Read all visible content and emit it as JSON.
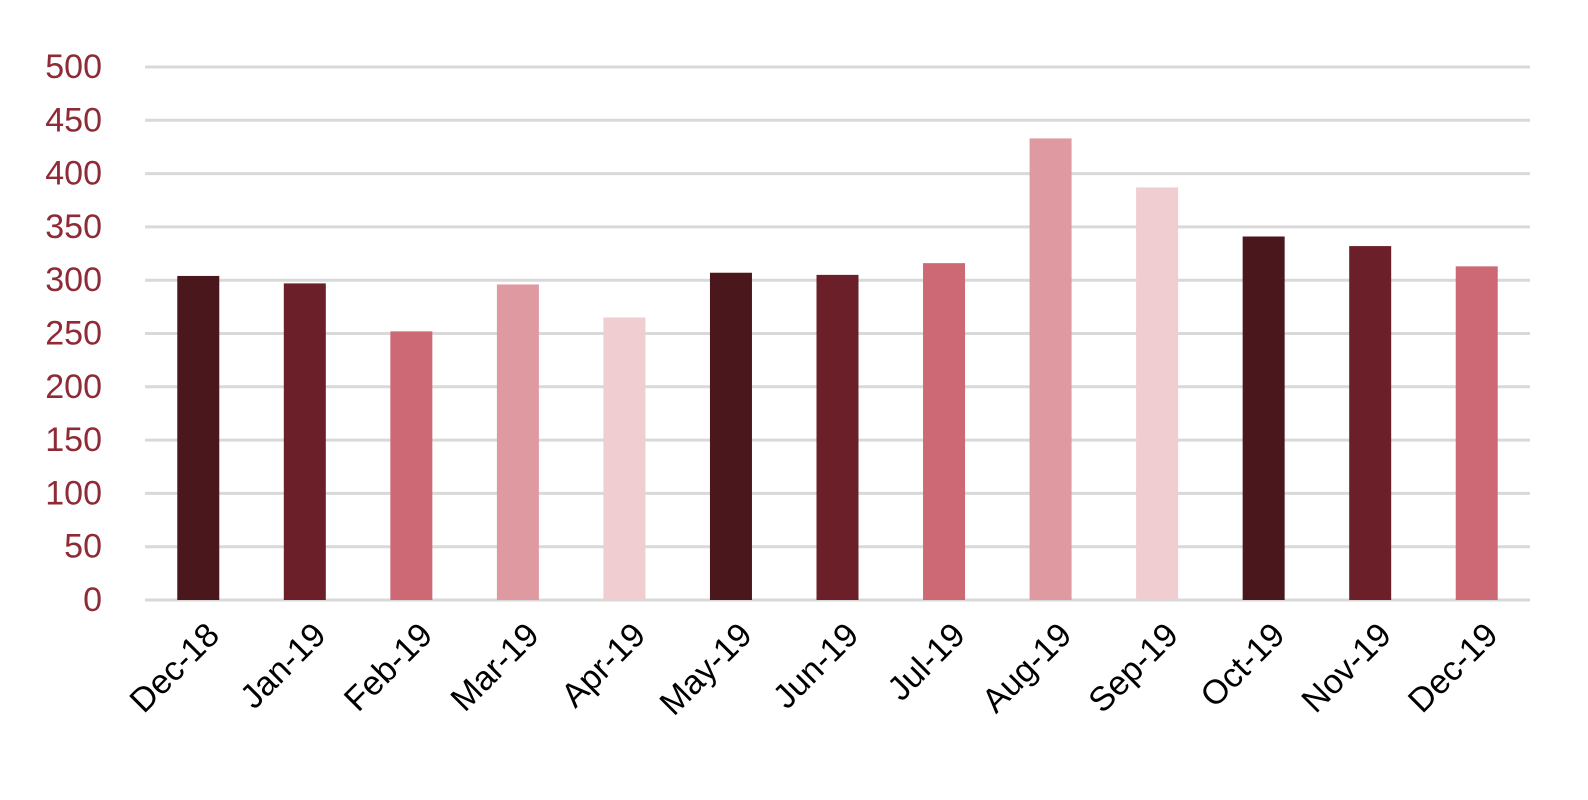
{
  "chart_data": {
    "type": "bar",
    "title": "",
    "xlabel": "",
    "ylabel": "",
    "categories": [
      "Dec-18",
      "Jan-19",
      "Feb-19",
      "Mar-19",
      "Apr-19",
      "May-19",
      "Jun-19",
      "Jul-19",
      "Aug-19",
      "Sep-19",
      "Oct-19",
      "Nov-19",
      "Dec-19"
    ],
    "values": [
      304,
      297,
      252,
      296,
      265,
      307,
      305,
      316,
      433,
      387,
      341,
      332,
      313
    ],
    "bar_colors": [
      "#4a171c",
      "#6b2029",
      "#cd6975",
      "#de99a1",
      "#efcdd1",
      "#4a171c",
      "#6b2029",
      "#cd6975",
      "#de99a1",
      "#efcdd1",
      "#4a171c",
      "#6b2029",
      "#cd6975"
    ],
    "ylim": [
      0,
      500
    ],
    "yticks": [
      0,
      50,
      100,
      150,
      200,
      250,
      300,
      350,
      400,
      450,
      500
    ],
    "grid": true,
    "legend": "none",
    "colors": {
      "ytick_text": "#8e2b36",
      "xtick_text": "#000000",
      "gridline": "#d9d9d9"
    }
  }
}
